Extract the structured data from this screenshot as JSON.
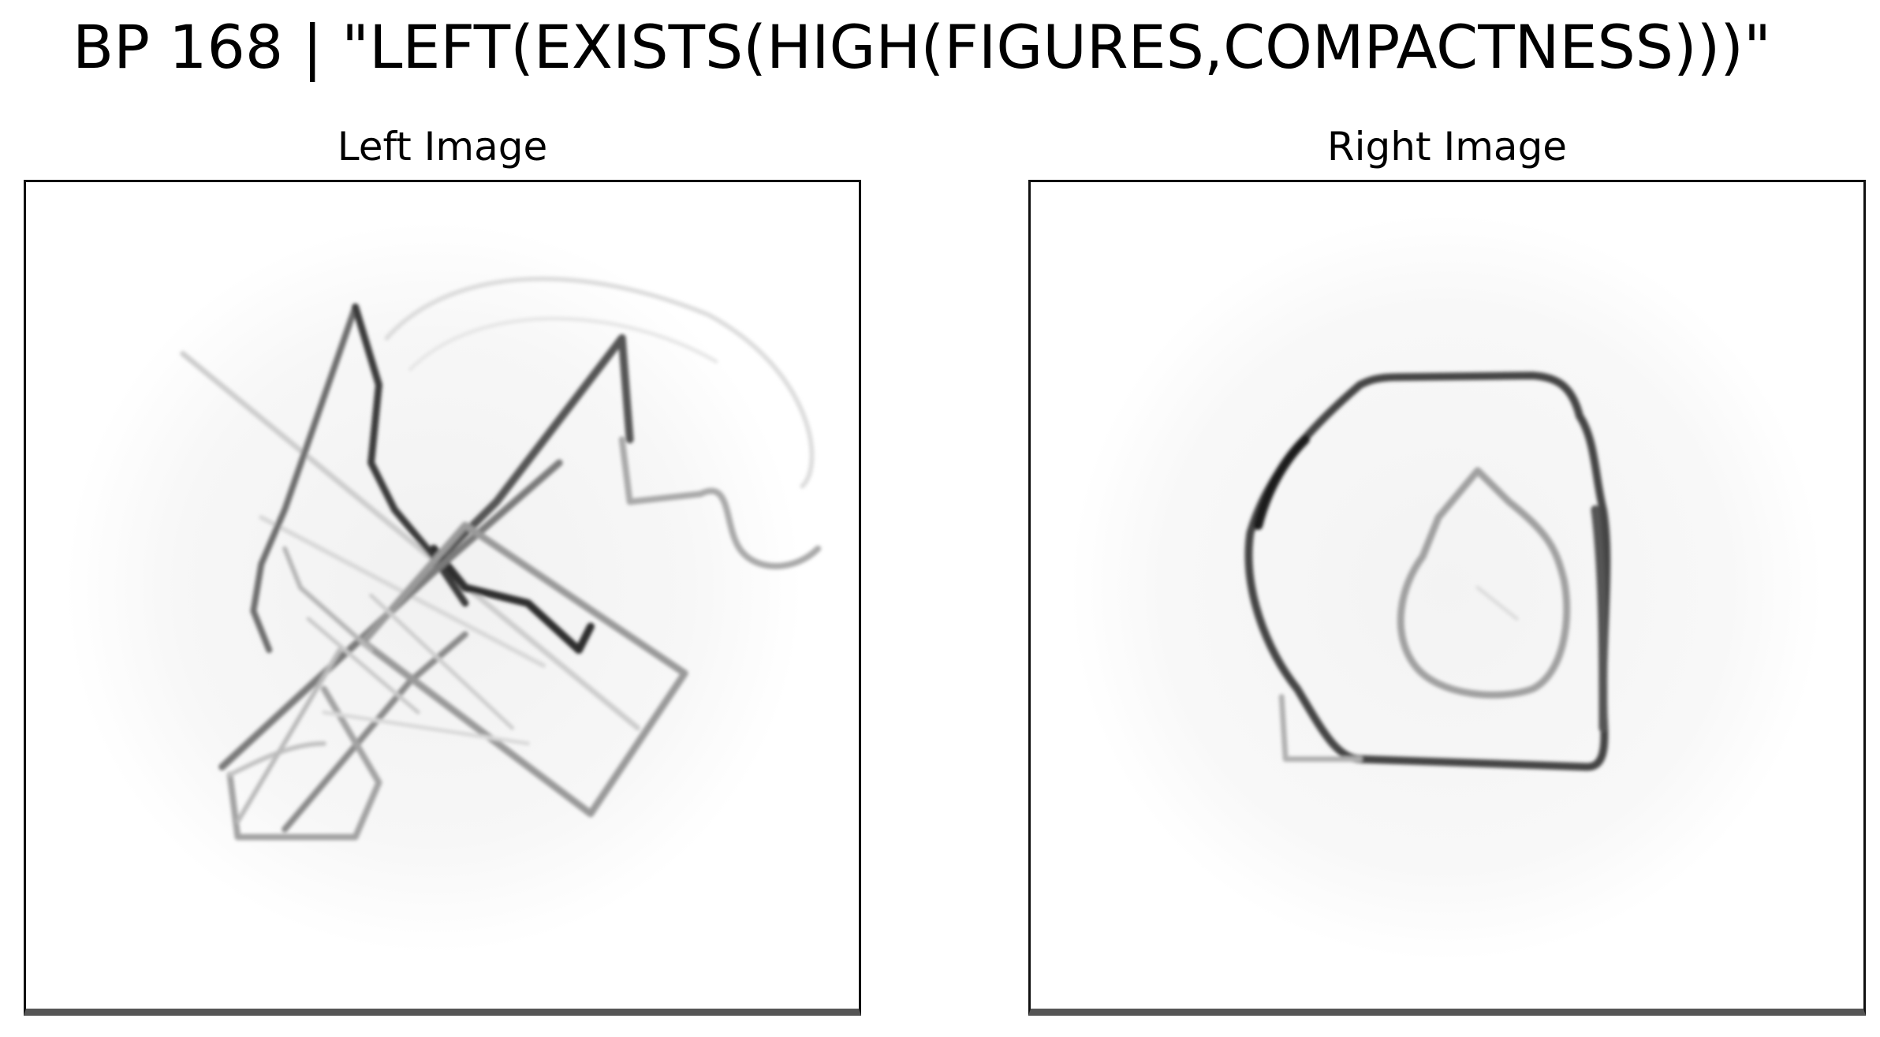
{
  "figure": {
    "title": "BP 168 | \"LEFT(EXISTS(HIGH(FIGURES,COMPACTNESS)))\""
  },
  "panels": [
    {
      "title": "Left Image"
    },
    {
      "title": "Right Image"
    }
  ]
}
